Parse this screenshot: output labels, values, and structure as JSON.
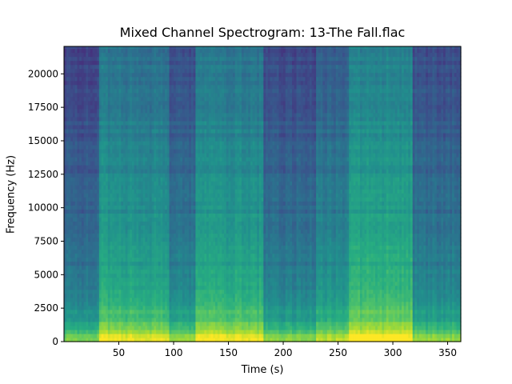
{
  "chart_data": {
    "type": "heatmap",
    "title": "Mixed Channel Spectrogram: 13-The Fall.flac",
    "xlabel": "Time (s)",
    "ylabel": "Frequency (Hz)",
    "xlim": [
      0,
      362
    ],
    "ylim": [
      0,
      22050
    ],
    "x_ticks": [
      50,
      100,
      150,
      200,
      250,
      300,
      350
    ],
    "y_ticks": [
      0,
      2500,
      5000,
      7500,
      10000,
      12500,
      15000,
      17500,
      20000
    ],
    "colormap": "viridis",
    "segments": [
      {
        "start": 0,
        "end": 32,
        "level": 0.38
      },
      {
        "start": 32,
        "end": 49,
        "level": 0.58
      },
      {
        "start": 49,
        "end": 78,
        "level": 0.56
      },
      {
        "start": 78,
        "end": 96,
        "level": 0.55
      },
      {
        "start": 96,
        "end": 120,
        "level": 0.42
      },
      {
        "start": 120,
        "end": 182,
        "level": 0.57
      },
      {
        "start": 182,
        "end": 230,
        "level": 0.4
      },
      {
        "start": 230,
        "end": 261,
        "level": 0.48
      },
      {
        "start": 261,
        "end": 318,
        "level": 0.62
      },
      {
        "start": 318,
        "end": 362,
        "level": 0.42
      }
    ]
  }
}
